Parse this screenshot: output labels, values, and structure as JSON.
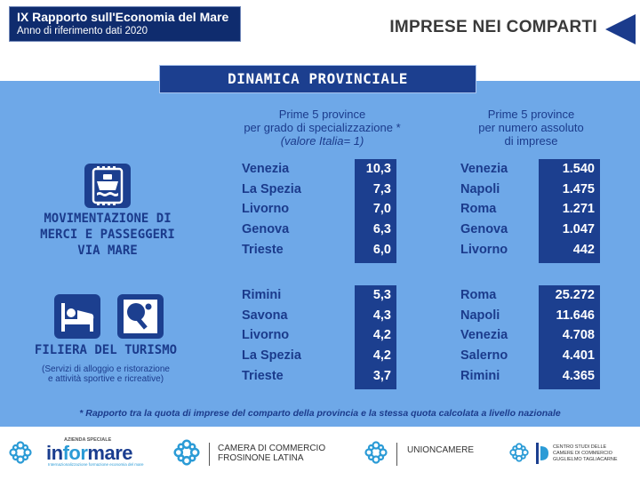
{
  "header": {
    "title": "IX Rapporto sull'Economia del Mare",
    "subtitle": "Anno di riferimento dati 2020",
    "section_title": "IMPRESE NEI COMPARTI"
  },
  "banner": "DINAMICA PROVINCIALE",
  "column_headers": {
    "specialization": {
      "line1": "Prime 5 province",
      "line2": "per grado di specializzazione *",
      "line3": "(valore Italia= 1)"
    },
    "absolute": {
      "line1": "Prime 5 province",
      "line2": "per numero assoluto",
      "line3": "di imprese"
    }
  },
  "sections": [
    {
      "label_lines": [
        "MOVIMENTAZIONE DI",
        "MERCI E PASSEGGERI",
        "VIA MARE"
      ],
      "icons": [
        "ship-icon"
      ],
      "specialization": [
        {
          "province": "Venezia",
          "value": "10,3"
        },
        {
          "province": "La Spezia",
          "value": "7,3"
        },
        {
          "province": "Livorno",
          "value": "7,0"
        },
        {
          "province": "Genova",
          "value": "6,3"
        },
        {
          "province": "Trieste",
          "value": "6,0"
        }
      ],
      "absolute": [
        {
          "province": "Venezia",
          "value": "1.540"
        },
        {
          "province": "Napoli",
          "value": "1.475"
        },
        {
          "province": "Roma",
          "value": "1.271"
        },
        {
          "province": "Genova",
          "value": "1.047"
        },
        {
          "province": "Livorno",
          "value": "442"
        }
      ]
    },
    {
      "label_lines": [
        "FILIERA DEL TURISMO"
      ],
      "sublabel_lines": [
        "(Servizi di alloggio e ristorazione",
        "e attività sportive e ricreative)"
      ],
      "icons": [
        "bed-icon",
        "ping-pong-icon"
      ],
      "specialization": [
        {
          "province": "Rimini",
          "value": "5,3"
        },
        {
          "province": "Savona",
          "value": "4,3"
        },
        {
          "province": "Livorno",
          "value": "4,2"
        },
        {
          "province": "La Spezia",
          "value": "4,2"
        },
        {
          "province": "Trieste",
          "value": "3,7"
        }
      ],
      "absolute": [
        {
          "province": "Roma",
          "value": "25.272"
        },
        {
          "province": "Napoli",
          "value": "11.646"
        },
        {
          "province": "Venezia",
          "value": "4.708"
        },
        {
          "province": "Salerno",
          "value": "4.401"
        },
        {
          "province": "Rimini",
          "value": "4.365"
        }
      ]
    }
  ],
  "footnote": "* Rapporto tra la quota di imprese del comparto della provincia e la stessa quota calcolata a livello nazionale",
  "footer": {
    "informare": {
      "small": "AZIENDA SPECIALE",
      "word_a": "in",
      "word_b": "for",
      "word_c": "mare",
      "tagline": "Internazionalizzazione formazione economia del mare"
    },
    "camera": {
      "line1": "CAMERA DI COMMERCIO",
      "line2": "FROSINONE LATINA"
    },
    "unioncamere": "UNIONCAMERE",
    "tagliacarne": {
      "line1": "CENTRO STUDI DELLE",
      "line2": "CAMERE DI COMMERCIO",
      "line3": "GUGLIELMO TAGLIACARNE"
    }
  },
  "colors": {
    "header_bg": "#0f2c6e",
    "panel_bg": "#6ea8e8",
    "dark_blue": "#1c3f8f",
    "text_blue": "#1b3b8c"
  }
}
